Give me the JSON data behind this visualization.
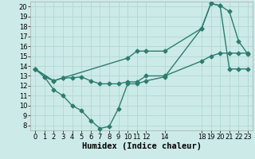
{
  "xlabel": "Humidex (Indice chaleur)",
  "bg_color": "#cceae8",
  "line_color": "#2d7d6e",
  "xlim": [
    -0.5,
    23.5
  ],
  "ylim": [
    7.5,
    20.5
  ],
  "xticks": [
    0,
    1,
    2,
    3,
    4,
    5,
    6,
    7,
    8,
    9,
    10,
    11,
    12,
    14,
    18,
    19,
    20,
    21,
    22,
    23
  ],
  "yticks": [
    8,
    9,
    10,
    11,
    12,
    13,
    14,
    15,
    16,
    17,
    18,
    19,
    20
  ],
  "line1_x": [
    0,
    1,
    2,
    3,
    4,
    5,
    6,
    7,
    8,
    9,
    10,
    11,
    12,
    14,
    18,
    19,
    20,
    21,
    22,
    23
  ],
  "line1_y": [
    13.7,
    12.9,
    11.6,
    11.0,
    10.0,
    9.5,
    8.5,
    7.7,
    7.9,
    9.7,
    12.2,
    12.2,
    12.5,
    12.9,
    17.8,
    20.3,
    20.1,
    19.5,
    16.5,
    15.2
  ],
  "line2_x": [
    0,
    1,
    2,
    3,
    4,
    5,
    6,
    7,
    8,
    9,
    10,
    11,
    12,
    14,
    18,
    19,
    20,
    21,
    22,
    23
  ],
  "line2_y": [
    13.7,
    12.9,
    12.5,
    12.8,
    12.8,
    12.9,
    12.5,
    12.2,
    12.2,
    12.2,
    12.4,
    12.4,
    13.0,
    13.0,
    14.5,
    15.0,
    15.3,
    15.3,
    15.3,
    15.3
  ],
  "line3_x": [
    0,
    2,
    3,
    10,
    11,
    12,
    14,
    18,
    19,
    20,
    21,
    22,
    23
  ],
  "line3_y": [
    13.7,
    12.5,
    12.8,
    14.8,
    15.5,
    15.5,
    15.5,
    17.8,
    20.3,
    20.1,
    13.7,
    13.7,
    13.7
  ],
  "grid_color": "#b0d8d5",
  "marker": "D",
  "markersize": 2.5,
  "linewidth": 1.0,
  "tick_fontsize": 6,
  "xlabel_fontsize": 7.5
}
